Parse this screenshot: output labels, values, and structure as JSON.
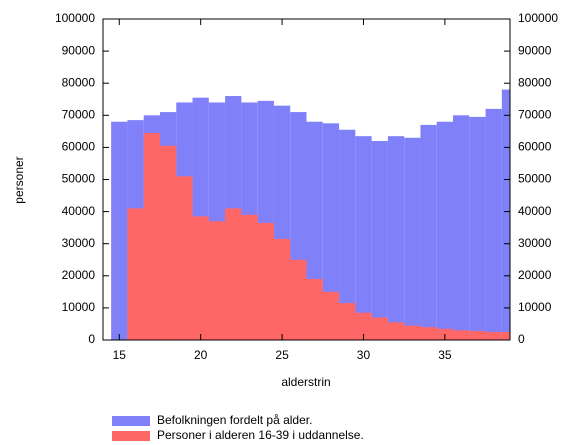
{
  "chart_data": {
    "type": "bar",
    "x_label": "alderstrin",
    "y_label": "personer",
    "x": [
      15,
      16,
      17,
      18,
      19,
      20,
      21,
      22,
      23,
      24,
      25,
      26,
      27,
      28,
      29,
      30,
      31,
      32,
      33,
      34,
      35,
      36,
      37,
      38,
      39
    ],
    "series": [
      {
        "name": "Befolkningen fordelt på alder.",
        "color": "#8080f8",
        "values": [
          68000,
          68500,
          70000,
          71000,
          74000,
          75500,
          74000,
          76000,
          74000,
          74500,
          73000,
          71000,
          68000,
          67500,
          65500,
          63500,
          62000,
          63500,
          63000,
          67000,
          68000,
          70000,
          69500,
          72000,
          78000
        ]
      },
      {
        "name": "Personer i alderen 16-39 i uddannelse.",
        "color": "#ff6666",
        "values": [
          null,
          41000,
          64500,
          60500,
          51000,
          38500,
          37000,
          41000,
          39000,
          36500,
          31500,
          25000,
          19000,
          15000,
          11500,
          8500,
          7000,
          5500,
          4500,
          4000,
          3500,
          3000,
          2800,
          2500,
          2500
        ]
      }
    ],
    "xlim": [
      14,
      39
    ],
    "xticks": [
      15,
      20,
      25,
      30,
      35
    ],
    "ylim": [
      0,
      100000
    ],
    "yticks": [
      0,
      10000,
      20000,
      30000,
      40000,
      50000,
      60000,
      70000,
      80000,
      90000,
      100000
    ]
  }
}
